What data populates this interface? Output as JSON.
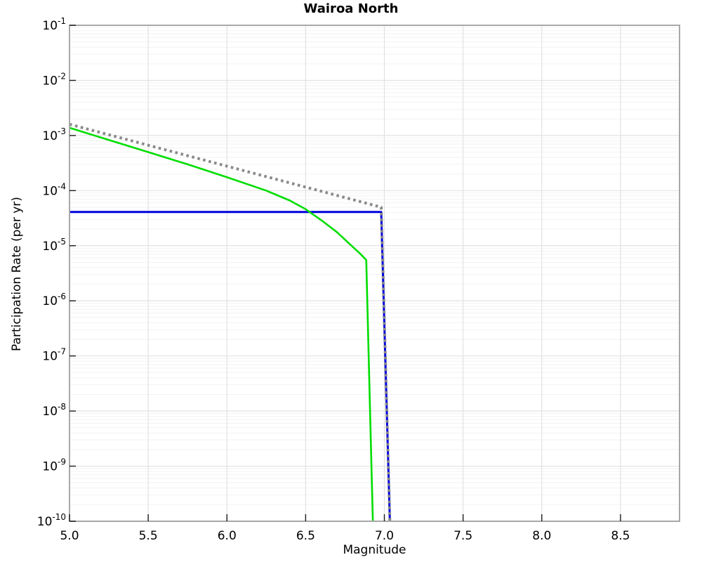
{
  "figure": {
    "background": "#ffffff"
  },
  "chart_data": {
    "type": "line",
    "title": "Wairoa North",
    "xlabel": "Magnitude",
    "ylabel": "Participation Rate (per yr)",
    "legend": "none",
    "x_axis": {
      "min": 5.0,
      "max": 8.875,
      "ticks": [
        5.0,
        5.5,
        6.0,
        6.5,
        7.0,
        7.5,
        8.0,
        8.5
      ],
      "tick_labels": [
        "5.0",
        "5.5",
        "6.0",
        "6.5",
        "7.0",
        "7.5",
        "8.0",
        "8.5"
      ]
    },
    "y_axis": {
      "scale": "log",
      "min": 1e-10,
      "max": 0.1,
      "tick_exponents": [
        -1,
        -2,
        -3,
        -4,
        -5,
        -6,
        -7,
        -8,
        -9,
        -10
      ],
      "tick_base": "10"
    },
    "grid": {
      "show_major": true,
      "show_minor_y": true,
      "major_color": "#e2e2e2",
      "minor_color": "#f2f2f2"
    },
    "frame_color": "#a8a8a8",
    "tick_color": "#1a1a1a",
    "series": [
      {
        "name": "characteristic-blue",
        "color": "#0000dd",
        "style": "solid",
        "width": 3,
        "points": [
          [
            5.0,
            4.1e-05
          ],
          [
            6.98,
            4.1e-05
          ],
          [
            7.035,
            1e-10
          ]
        ]
      },
      {
        "name": "hybrid-green",
        "color": "#00dd00",
        "style": "solid",
        "width": 2.6,
        "points": [
          [
            5.0,
            0.00138
          ],
          [
            5.25,
            0.00083
          ],
          [
            5.5,
            0.0005
          ],
          [
            5.75,
            0.0003
          ],
          [
            6.0,
            0.000175
          ],
          [
            6.25,
            0.0001
          ],
          [
            6.4,
            6.6e-05
          ],
          [
            6.5,
            4.6e-05
          ],
          [
            6.6,
            2.9e-05
          ],
          [
            6.7,
            1.75e-05
          ],
          [
            6.8,
            9.5e-06
          ],
          [
            6.85,
            7e-06
          ],
          [
            6.885,
            5.5e-06
          ],
          [
            6.9,
            1.1e-07
          ],
          [
            6.91,
            8e-09
          ],
          [
            6.92,
            6e-10
          ],
          [
            6.927,
            1e-10
          ]
        ]
      },
      {
        "name": "truncated-gr-dotted",
        "color": "#8a8a8a",
        "style": "dotted",
        "width": 4,
        "points": [
          [
            5.0,
            0.0016
          ],
          [
            6.98,
            5e-05
          ],
          [
            7.035,
            1e-10
          ]
        ]
      }
    ]
  }
}
